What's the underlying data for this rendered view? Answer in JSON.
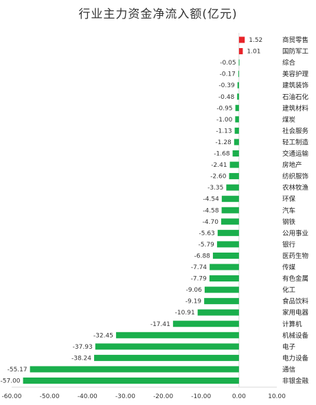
{
  "chart_data": {
    "type": "bar",
    "orientation": "horizontal",
    "title": "行业主力资金净流入额(亿元)",
    "categories": [
      "商贸零售",
      "国防军工",
      "综合",
      "美容护理",
      "建筑装饰",
      "石油石化",
      "建筑材料",
      "煤炭",
      "社会服务",
      "轻工制造",
      "交通运输",
      "房地产",
      "纺织服饰",
      "农林牧渔",
      "环保",
      "汽车",
      "钢铁",
      "公用事业",
      "银行",
      "医药生物",
      "传媒",
      "有色金属",
      "化工",
      "食品饮料",
      "家用电器",
      "计算机",
      "机械设备",
      "电子",
      "电力设备",
      "通信",
      "非银金融"
    ],
    "values": [
      1.52,
      1.01,
      -0.05,
      -0.17,
      -0.39,
      -0.48,
      -0.95,
      -1.0,
      -1.13,
      -1.28,
      -1.68,
      -2.41,
      -2.6,
      -3.35,
      -4.54,
      -4.58,
      -4.7,
      -5.63,
      -5.79,
      -6.88,
      -7.74,
      -7.79,
      -9.06,
      -9.19,
      -10.91,
      -17.41,
      -32.45,
      -37.93,
      -38.24,
      -55.17,
      -57.0
    ],
    "value_labels": [
      "1.52",
      "1.01",
      "-0.05",
      "-0.17",
      "-0.39",
      "-0.48",
      "-0.95",
      "-1.00",
      "-1.13",
      "-1.28",
      "-1.68",
      "-2.41",
      "-2.60",
      "-3.35",
      "-4.54",
      "-4.58",
      "-4.70",
      "-5.63",
      "-5.79",
      "-6.88",
      "-7.74",
      "-7.79",
      "-9.06",
      "-9.19",
      "-10.91",
      "-17.41",
      "-32.45",
      "-37.93",
      "-38.24",
      "-55.17",
      "-57.00"
    ],
    "xlim": [
      -60,
      10
    ],
    "xticks": [
      -60,
      -50,
      -40,
      -30,
      -20,
      -10,
      0,
      10
    ],
    "xtick_labels": [
      "-60.00",
      "-50.00",
      "-40.00",
      "-30.00",
      "-20.00",
      "-10.00",
      "0.00",
      "10.00"
    ],
    "grid": false,
    "legend": "none",
    "colors": {
      "positive": "#e8242a",
      "negative": "#1aaf4c"
    }
  }
}
